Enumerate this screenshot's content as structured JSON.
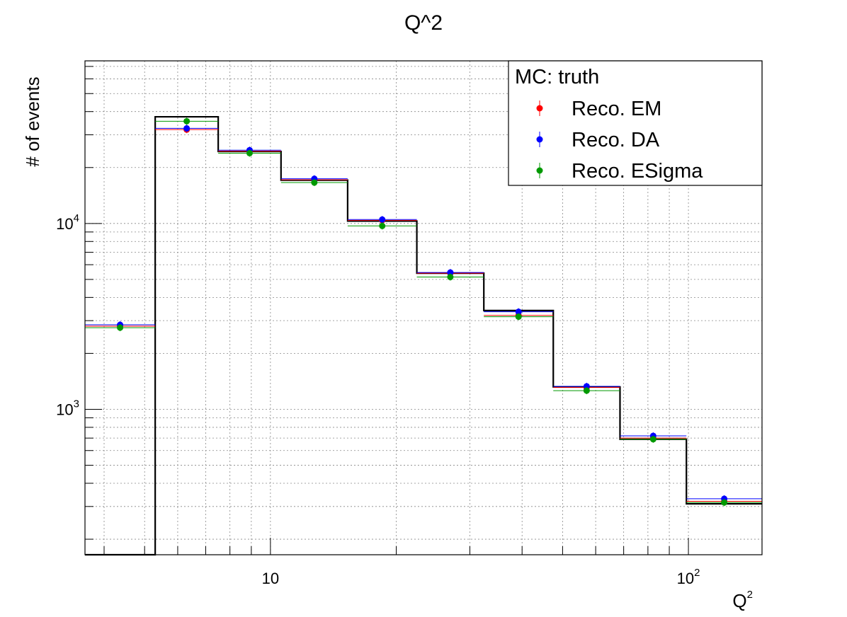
{
  "chart_data": {
    "type": "histogram",
    "title": "Q^2",
    "xlabel": "Q",
    "xlabel_sup": "2",
    "ylabel": "# of events",
    "x_scale": "log",
    "y_scale": "log",
    "xlim": [
      3.6,
      150
    ],
    "ylim": [
      165,
      75000
    ],
    "grid": true,
    "x_ticks": [
      {
        "value": 10,
        "base": "10",
        "exp": ""
      },
      {
        "value": 100,
        "base": "10",
        "exp": "2"
      }
    ],
    "y_ticks": [
      {
        "value": 1000,
        "base": "10",
        "exp": "3"
      },
      {
        "value": 10000,
        "base": "10",
        "exp": "4"
      }
    ],
    "bin_edges": [
      3.6,
      5.3,
      7.5,
      10.6,
      15.3,
      22.4,
      32.4,
      47.5,
      68.6,
      98.9,
      150
    ],
    "truth": {
      "name": "MC: truth",
      "color": "#000000",
      "values": [
        165,
        37500,
        24400,
        17100,
        10300,
        5400,
        3400,
        1320,
        690,
        310
      ]
    },
    "series": [
      {
        "name": "Reco. EM",
        "color": "#ff0000",
        "values": [
          2800,
          32000,
          24500,
          17200,
          10400,
          5400,
          3200,
          1310,
          700,
          320
        ]
      },
      {
        "name": "Reco. DA",
        "color": "#0000ff",
        "values": [
          2850,
          32500,
          24800,
          17400,
          10500,
          5450,
          3350,
          1330,
          720,
          330
        ]
      },
      {
        "name": "Reco. ESigma",
        "color": "#009900",
        "values": [
          2750,
          35500,
          23900,
          16600,
          9700,
          5150,
          3150,
          1260,
          690,
          315
        ]
      }
    ],
    "legend_position": "top-right"
  }
}
